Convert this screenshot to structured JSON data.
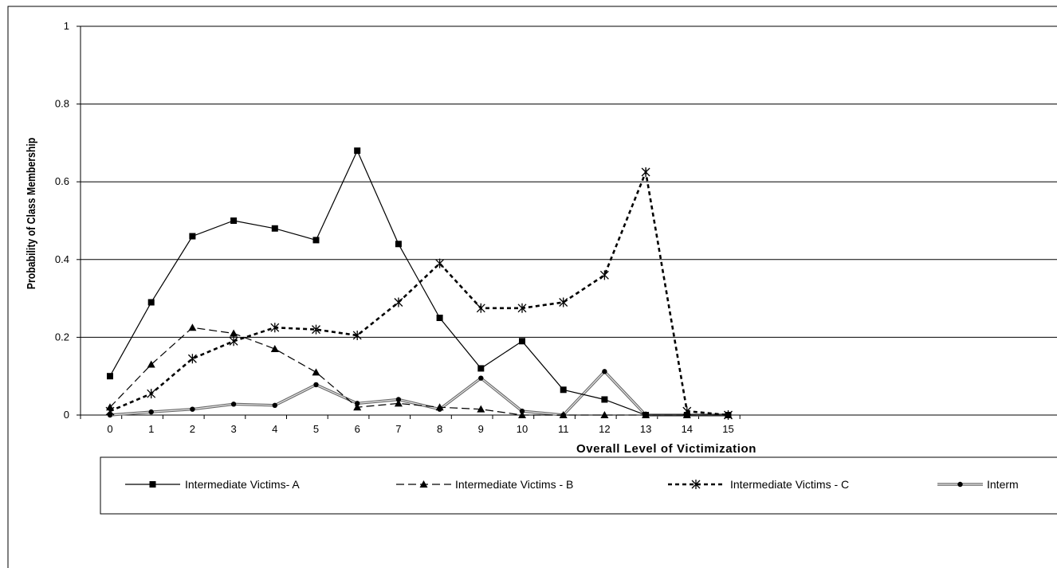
{
  "chart_data": {
    "type": "line",
    "title": "",
    "xlabel": "Overall Level of Victimization",
    "ylabel": "Probability of Class Membership",
    "x": [
      0,
      1,
      2,
      3,
      4,
      5,
      6,
      7,
      8,
      9,
      10,
      11,
      12,
      13,
      14,
      15
    ],
    "x_tick_labels": [
      "0",
      "1",
      "2",
      "3",
      "4",
      "5",
      "6",
      "7",
      "8",
      "9",
      "10",
      "11",
      "12",
      "13",
      "14",
      "15"
    ],
    "ylim": [
      0,
      1
    ],
    "y_tick_labels": [
      "0",
      "0.2",
      "0.4",
      "0.6",
      "0.8",
      "1"
    ],
    "y_ticks": [
      0,
      0.2,
      0.4,
      0.6,
      0.8,
      1
    ],
    "grid": "horizontal",
    "legend_position": "bottom",
    "series": [
      {
        "name": "Intermediate Victims- A",
        "values": [
          0.1,
          0.29,
          0.46,
          0.5,
          0.48,
          0.45,
          0.68,
          0.44,
          0.25,
          0.12,
          0.19,
          0.065,
          0.04,
          0.0,
          0.0,
          0.0
        ],
        "marker": "square",
        "dash": "solid",
        "color": "#000000"
      },
      {
        "name": "Intermediate Victims - B",
        "values": [
          0.02,
          0.13,
          0.225,
          0.21,
          0.17,
          0.11,
          0.02,
          0.03,
          0.02,
          0.015,
          0.0,
          0.0,
          0.0,
          0.0,
          0.0,
          0.0
        ],
        "marker": "triangle",
        "dash": "longdash",
        "color": "#000000"
      },
      {
        "name": "Intermediate Victims - C",
        "values": [
          0.01,
          0.055,
          0.145,
          0.19,
          0.225,
          0.22,
          0.205,
          0.29,
          0.39,
          0.275,
          0.275,
          0.29,
          0.36,
          0.625,
          0.01,
          0.0
        ],
        "marker": "asterisk",
        "dash": "shortdash",
        "color": "#000000"
      },
      {
        "name": "Interm",
        "values": [
          0.0,
          0.008,
          0.015,
          0.028,
          0.025,
          0.078,
          0.03,
          0.04,
          0.015,
          0.095,
          0.01,
          0.0,
          0.112,
          0.0,
          0.0,
          0.0
        ],
        "marker": "circle",
        "dash": "double",
        "color": "#808080"
      }
    ]
  }
}
